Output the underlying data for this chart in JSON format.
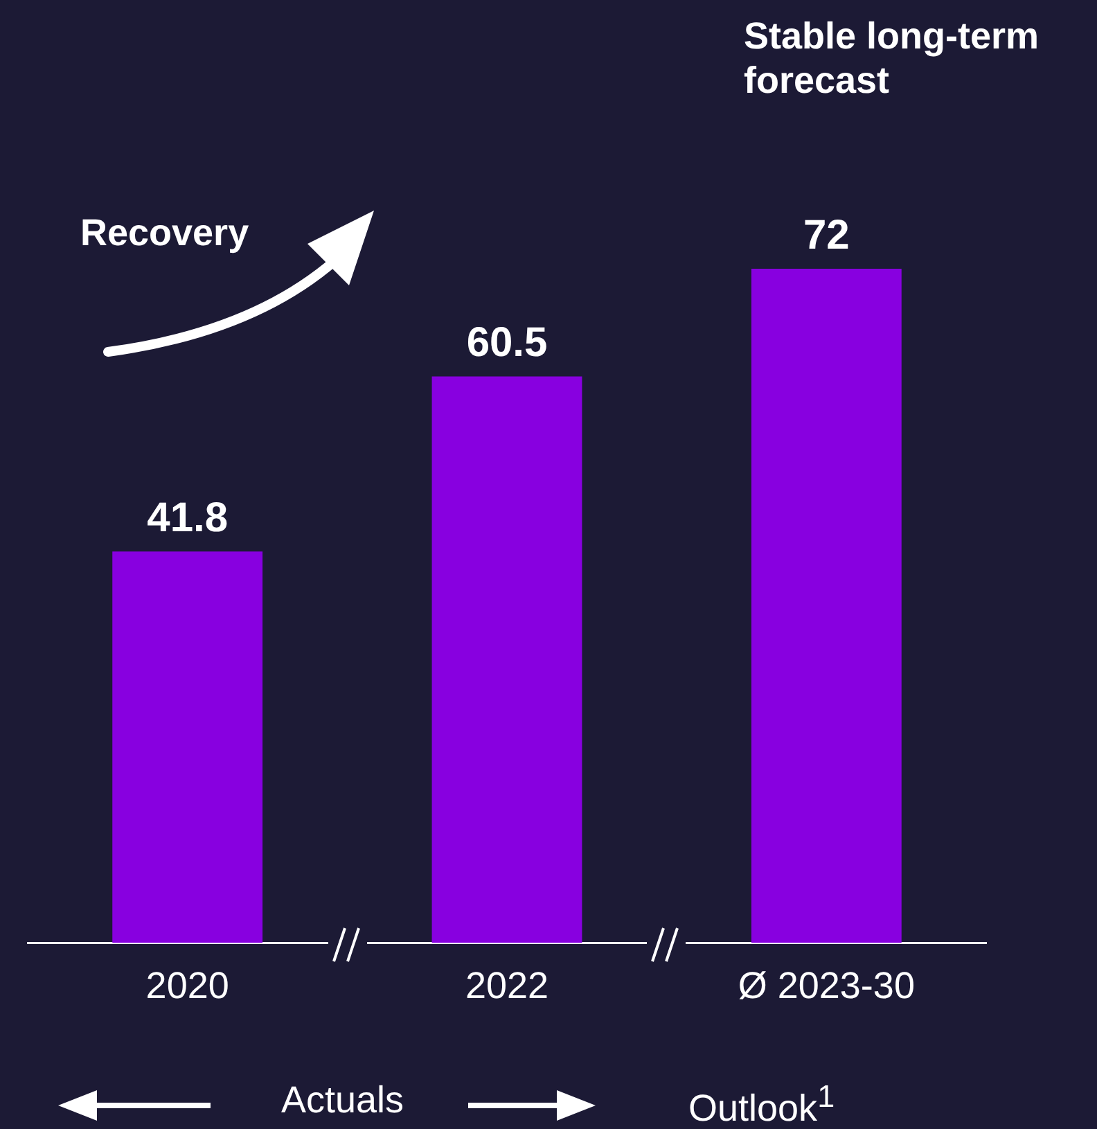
{
  "chart_data": {
    "type": "bar",
    "categories": [
      "2020",
      "2022",
      "Ø 2023-30"
    ],
    "values": [
      41.8,
      60.5,
      72
    ],
    "color": "#8800e0",
    "data_labels": true,
    "grid": false,
    "legend": false,
    "tick_labels": "x",
    "annotations": [
      "Recovery",
      "Stable long-term forecast",
      "Actuals",
      "Outlook$^{1}$"
    ]
  }
}
